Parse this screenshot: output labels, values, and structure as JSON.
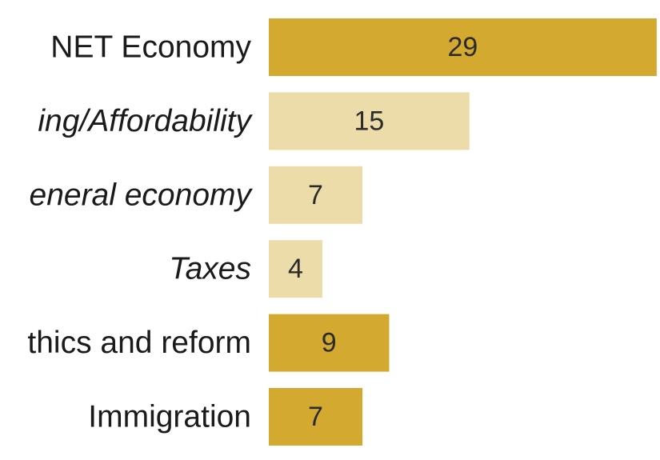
{
  "chart_data": {
    "type": "bar",
    "orientation": "horizontal",
    "categories": [
      "NET Economy",
      "Housing/Affordability",
      "General economy",
      "Taxes",
      "Ethics and reform",
      "Immigration"
    ],
    "values": [
      29,
      15,
      7,
      4,
      9,
      7
    ],
    "visible_labels": [
      "NET Economy",
      "ing/Affordability",
      "eneral economy",
      "Taxes",
      "thics and reform",
      "Immigration"
    ],
    "subcategory": [
      false,
      true,
      true,
      true,
      false,
      false
    ],
    "colors": {
      "primary": "#d4a92f",
      "sub": "#ecdcaa"
    },
    "title": "",
    "xlabel": "",
    "ylabel": "",
    "grid": false,
    "legend": "none"
  }
}
